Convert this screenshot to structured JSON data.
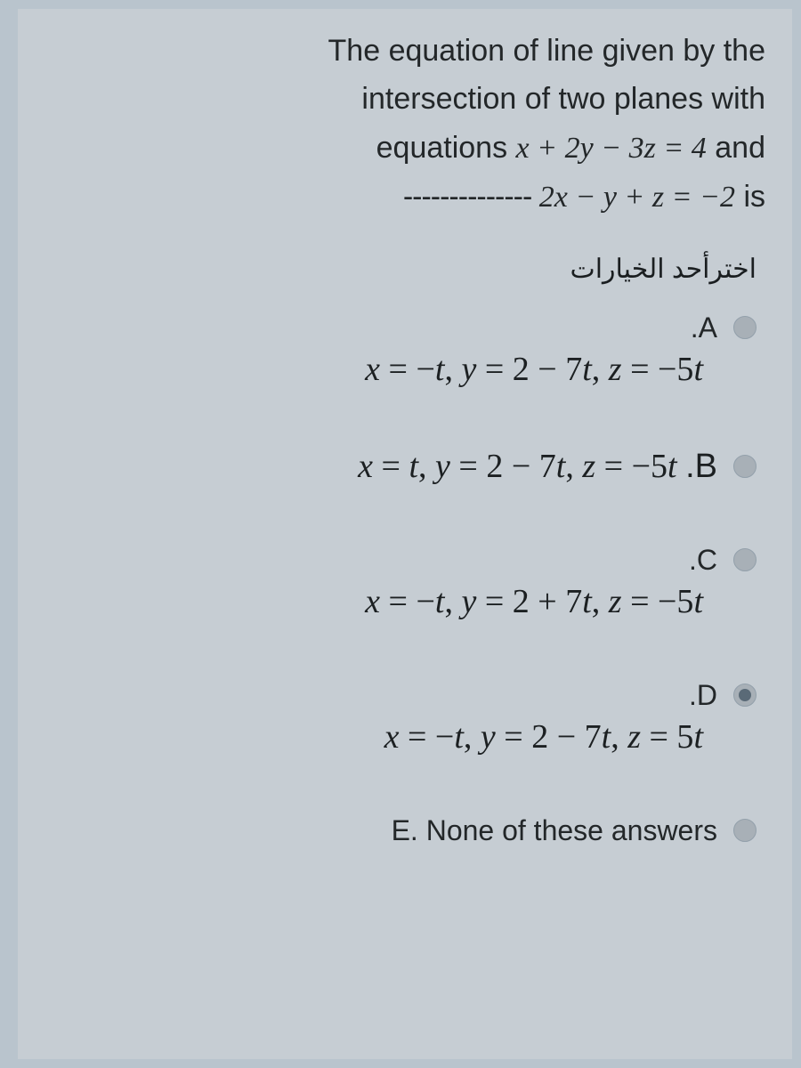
{
  "question": {
    "line1": "The equation of line given by the",
    "line2": "intersection of two planes with",
    "line3_prefix": "equations ",
    "line3_eq": "x + 2y − 3z = 4",
    "line3_suffix": " and",
    "line4_dashes": "-------------- ",
    "line4_eq": "2x − y + z = −2",
    "line4_suffix": " is"
  },
  "prompt_ar": "اخترأحد الخيارات",
  "options": {
    "A": {
      "letter": ".A",
      "equation": "x = −t, y = 2 − 7t, z = −5t",
      "selected": false
    },
    "B": {
      "letter": ".B",
      "equation": "x = t, y = 2 − 7t, z = −5t",
      "selected": false
    },
    "C": {
      "letter": ".C",
      "equation": "x = −t, y = 2 + 7t, z = −5t",
      "selected": false
    },
    "D": {
      "letter": ".D",
      "equation": "x = −t, y = 2 − 7t, z = 5t",
      "selected": true
    },
    "E": {
      "text": "E. None of these answers",
      "selected": false
    }
  },
  "colors": {
    "page_bg": "#c6cdd3",
    "outer_bg": "#b9c4cd",
    "text": "#232729",
    "radio_empty": "#a8b0b7",
    "radio_fill": "#5a6a77"
  },
  "fonts": {
    "body_size_pt": 34,
    "math_size_pt": 38,
    "option_label_pt": 32,
    "prompt_ar_pt": 30
  }
}
